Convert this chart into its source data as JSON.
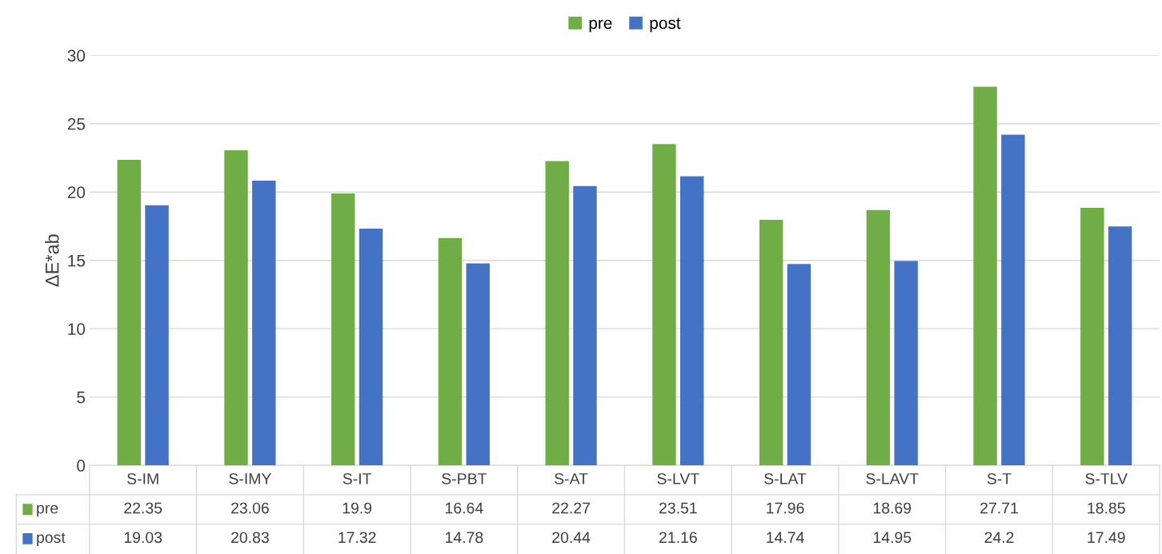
{
  "chart_data": {
    "type": "bar",
    "ylabel": "ΔE*ab",
    "categories": [
      "S-IM",
      "S-IMY",
      "S-IT",
      "S-PBT",
      "S-AT",
      "S-LVT",
      "S-LAT",
      "S-LAVT",
      "S-T",
      "S-TLV"
    ],
    "series": [
      {
        "name": "pre",
        "color": "#70ad47",
        "values": [
          22.35,
          23.06,
          19.9,
          16.64,
          22.27,
          23.51,
          17.96,
          18.69,
          27.71,
          18.85
        ]
      },
      {
        "name": "post",
        "color": "#4472c4",
        "values": [
          19.03,
          20.83,
          17.32,
          14.78,
          20.44,
          21.16,
          14.74,
          14.95,
          24.2,
          17.49
        ]
      }
    ],
    "ylim": [
      0,
      30
    ],
    "yticks": [
      0,
      5,
      10,
      15,
      20,
      25,
      30
    ],
    "grid": "y",
    "legend": "top",
    "data_labels": true
  }
}
